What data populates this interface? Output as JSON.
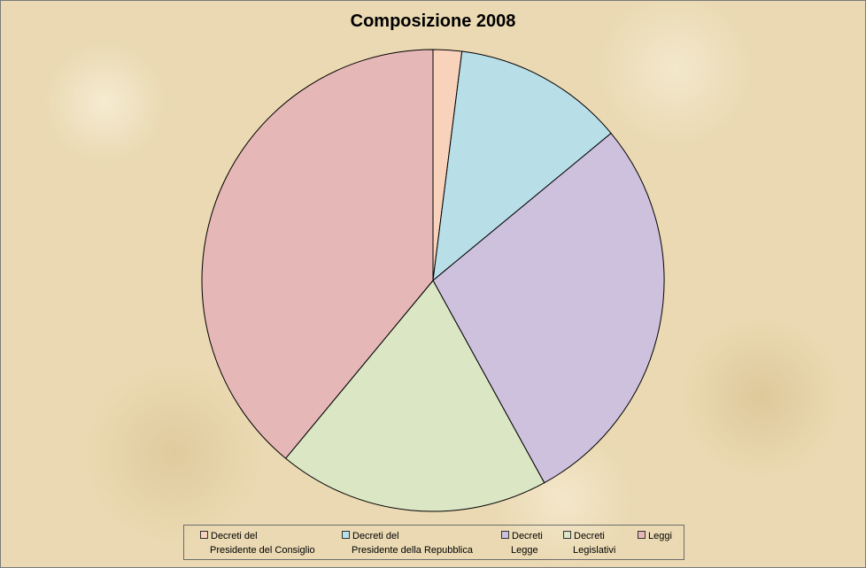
{
  "chart_data": {
    "type": "pie",
    "title": "Composizione 2008",
    "categories": [
      "Decreti del Presidente del Consiglio",
      "Decreti del Presidente della Repubblica",
      "Decreti Legge",
      "Decreti Legislativi",
      "Leggi"
    ],
    "values": [
      2,
      12,
      28,
      19,
      39
    ],
    "colors": [
      "#f9d2bb",
      "#b8dfe8",
      "#cdc1dd",
      "#dbe6c5",
      "#e6b7b7"
    ],
    "legend_position": "bottom",
    "legend": [
      {
        "line1": "Decreti del",
        "line2": "Presidente del Consiglio"
      },
      {
        "line1": "Decreti del",
        "line2": "Presidente della Repubblica"
      },
      {
        "line1": "Decreti",
        "line2": "Legge"
      },
      {
        "line1": "Decreti",
        "line2": "Legislativi"
      },
      {
        "line1": "Leggi",
        "line2": ""
      }
    ]
  }
}
